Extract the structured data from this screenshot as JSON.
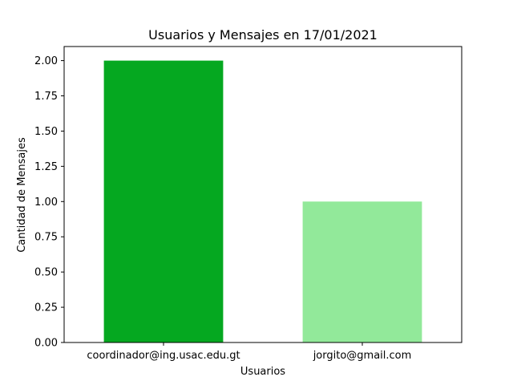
{
  "chart_data": {
    "type": "bar",
    "title": "Usuarios y Mensajes en 17/01/2021",
    "xlabel": "Usuarios",
    "ylabel": "Cantidad de Mensajes",
    "categories": [
      "coordinador@ing.usac.edu.gt",
      "jorgito@gmail.com"
    ],
    "values": [
      2,
      1
    ],
    "bar_colors": [
      "#05a820",
      "#92e99a"
    ],
    "ylim": [
      0,
      2.1
    ],
    "yticks": [
      "0.00",
      "0.25",
      "0.50",
      "0.75",
      "1.00",
      "1.25",
      "1.50",
      "1.75",
      "2.00"
    ],
    "grid": false,
    "legend": "none"
  }
}
